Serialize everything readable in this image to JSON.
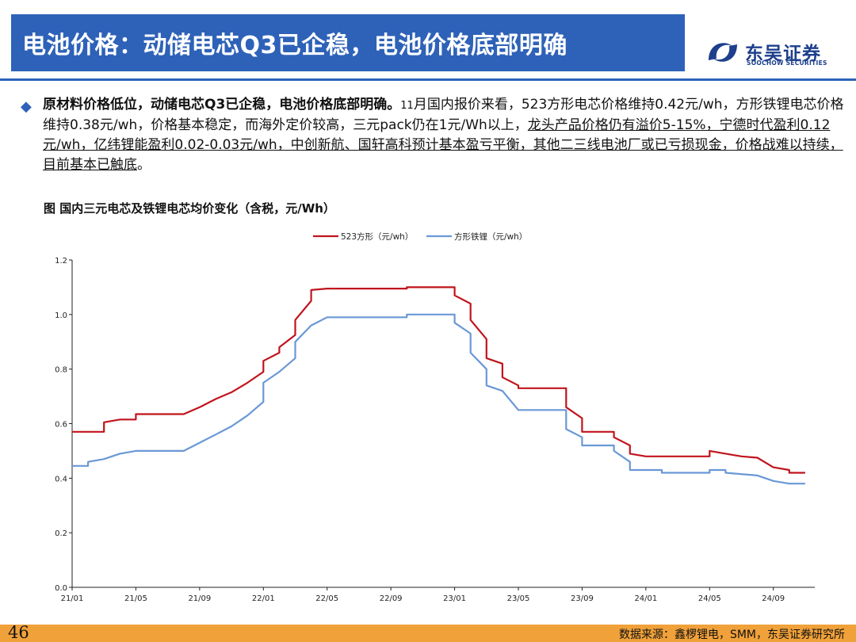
{
  "header": {
    "title": "电池价格：动储电芯Q3已企稳，电池价格底部明确",
    "logo_cn": "东吴证券",
    "logo_en": "SOOCHOW SECURITIES"
  },
  "bullet": {
    "lead": "原材料价格低位，动储电芯Q3已企稳，电池价格底部明确。",
    "month": "11",
    "text1": "月国内报价来看，523方形电芯价格维持0.42元/wh，方形铁锂电芯价格维持0.38元/wh，价格基本稳定，而海外定价较高，三元pack仍在1元/Wh以上，",
    "underlined": "龙头产品价格仍有溢价5-15%，宁德时代盈利0.12元/wh，亿纬锂能盈利0.02-0.03元/wh，中创新航、国轩高科预计基本盈亏平衡，其他二三线电池厂或已亏损现金，价格战难以持续，目前基本已触底",
    "end": "。"
  },
  "figure": {
    "caption": "图 国内三元电芯及铁锂电芯均价变化（含税，元/Wh）"
  },
  "footer": {
    "page": "46",
    "source": "数据来源：鑫椤锂电，SMM，东吴证券研究所"
  },
  "chart_data": {
    "type": "line",
    "x_ticks": [
      "21/01",
      "21/05",
      "21/09",
      "22/01",
      "22/05",
      "22/09",
      "23/01",
      "23/05",
      "23/09",
      "24/01",
      "24/05",
      "24/09"
    ],
    "y_ticks": [
      "0.0",
      "0.2",
      "0.4",
      "0.6",
      "0.8",
      "1.0",
      "1.2"
    ],
    "ylim": [
      0,
      1.2
    ],
    "xlim": [
      "2021-01",
      "2024-11"
    ],
    "legend_position": "top-center",
    "series": [
      {
        "name": "523方形（元/wh）",
        "color": "#c0141c",
        "points": [
          [
            "2021-01",
            0.57
          ],
          [
            "2021-03",
            0.57
          ],
          [
            "2021-03",
            0.605
          ],
          [
            "2021-04",
            0.615
          ],
          [
            "2021-04",
            0.615
          ],
          [
            "2021-05",
            0.615
          ],
          [
            "2021-05",
            0.635
          ],
          [
            "2021-08",
            0.635
          ],
          [
            "2021-09",
            0.66
          ],
          [
            "2021-10",
            0.69
          ],
          [
            "2021-11",
            0.715
          ],
          [
            "2021-12",
            0.75
          ],
          [
            "2022-01",
            0.79
          ],
          [
            "2022-01",
            0.83
          ],
          [
            "2022-02",
            0.86
          ],
          [
            "2022-02",
            0.88
          ],
          [
            "2022-03",
            0.925
          ],
          [
            "2022-03",
            0.98
          ],
          [
            "2022-04",
            1.05
          ],
          [
            "2022-04",
            1.09
          ],
          [
            "2022-05",
            1.095
          ],
          [
            "2022-10",
            1.095
          ],
          [
            "2022-10",
            1.1
          ],
          [
            "2023-01",
            1.1
          ],
          [
            "2023-01",
            1.07
          ],
          [
            "2023-02",
            1.04
          ],
          [
            "2023-02",
            0.98
          ],
          [
            "2023-03",
            0.91
          ],
          [
            "2023-03",
            0.84
          ],
          [
            "2023-04",
            0.82
          ],
          [
            "2023-04",
            0.77
          ],
          [
            "2023-05",
            0.74
          ],
          [
            "2023-05",
            0.73
          ],
          [
            "2023-08",
            0.73
          ],
          [
            "2023-08",
            0.66
          ],
          [
            "2023-09",
            0.62
          ],
          [
            "2023-09",
            0.57
          ],
          [
            "2023-11",
            0.57
          ],
          [
            "2023-11",
            0.55
          ],
          [
            "2023-12",
            0.52
          ],
          [
            "2023-12",
            0.49
          ],
          [
            "2024-01",
            0.48
          ],
          [
            "2024-05",
            0.48
          ],
          [
            "2024-05",
            0.5
          ],
          [
            "2024-06",
            0.49
          ],
          [
            "2024-07",
            0.48
          ],
          [
            "2024-08",
            0.475
          ],
          [
            "2024-09",
            0.44
          ],
          [
            "2024-10",
            0.43
          ],
          [
            "2024-10",
            0.42
          ],
          [
            "2024-11",
            0.42
          ]
        ]
      },
      {
        "name": "方形铁锂（元/wh）",
        "color": "#6a98d6",
        "points": [
          [
            "2021-01",
            0.445
          ],
          [
            "2021-02",
            0.445
          ],
          [
            "2021-02",
            0.46
          ],
          [
            "2021-03",
            0.47
          ],
          [
            "2021-04",
            0.49
          ],
          [
            "2021-05",
            0.5
          ],
          [
            "2021-08",
            0.5
          ],
          [
            "2021-09",
            0.53
          ],
          [
            "2021-10",
            0.56
          ],
          [
            "2021-11",
            0.59
          ],
          [
            "2021-12",
            0.63
          ],
          [
            "2022-01",
            0.68
          ],
          [
            "2022-01",
            0.75
          ],
          [
            "2022-02",
            0.79
          ],
          [
            "2022-03",
            0.84
          ],
          [
            "2022-03",
            0.9
          ],
          [
            "2022-04",
            0.96
          ],
          [
            "2022-05",
            0.99
          ],
          [
            "2022-10",
            0.99
          ],
          [
            "2022-10",
            1.0
          ],
          [
            "2023-01",
            1.0
          ],
          [
            "2023-01",
            0.97
          ],
          [
            "2023-02",
            0.93
          ],
          [
            "2023-02",
            0.86
          ],
          [
            "2023-03",
            0.8
          ],
          [
            "2023-03",
            0.74
          ],
          [
            "2023-04",
            0.72
          ],
          [
            "2023-05",
            0.65
          ],
          [
            "2023-08",
            0.65
          ],
          [
            "2023-08",
            0.58
          ],
          [
            "2023-09",
            0.55
          ],
          [
            "2023-09",
            0.52
          ],
          [
            "2023-11",
            0.52
          ],
          [
            "2023-11",
            0.5
          ],
          [
            "2023-12",
            0.46
          ],
          [
            "2023-12",
            0.43
          ],
          [
            "2024-02",
            0.43
          ],
          [
            "2024-02",
            0.42
          ],
          [
            "2024-05",
            0.42
          ],
          [
            "2024-05",
            0.43
          ],
          [
            "2024-06",
            0.43
          ],
          [
            "2024-06",
            0.42
          ],
          [
            "2024-08",
            0.41
          ],
          [
            "2024-09",
            0.39
          ],
          [
            "2024-10",
            0.38
          ],
          [
            "2024-11",
            0.38
          ]
        ]
      }
    ]
  }
}
